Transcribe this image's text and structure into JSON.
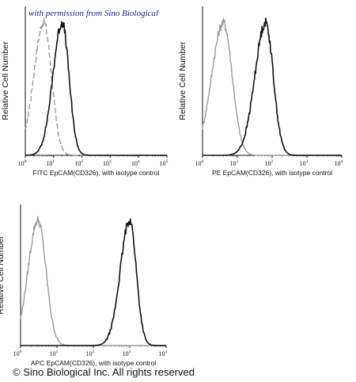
{
  "watermark": "with permission from Sino Biological",
  "copyright": "© Sino Biological Inc. All rights reserved",
  "colors": {
    "isotype": "#9a9a9a",
    "sample": "#111111",
    "axis": "#111111",
    "watermark": "#1a1a8a"
  },
  "chart_data": [
    {
      "type": "line",
      "title": "",
      "xlabel": "FITC  EpCAM(CD326),  with isotype control",
      "ylabel": "Relative Cell Number",
      "x_scale": "log",
      "xlim": [
        1,
        100000
      ],
      "ylim": [
        0,
        1
      ],
      "x_ticks": [
        {
          "base": "10",
          "exp": "0"
        },
        {
          "base": "10",
          "exp": "1"
        },
        {
          "base": "10",
          "exp": "2"
        },
        {
          "base": "10",
          "exp": "3"
        },
        {
          "base": "10",
          "exp": "4"
        },
        {
          "base": "10",
          "exp": "5"
        }
      ],
      "series": [
        {
          "role": "isotype",
          "peak": 4.5,
          "log_width": 0.27,
          "tail": 0.8,
          "style": "dashed"
        },
        {
          "role": "sample",
          "peak": 20,
          "log_width": 0.24,
          "tail": 0.9,
          "style": "solid"
        }
      ]
    },
    {
      "type": "line",
      "title": "",
      "xlabel": "PE  EpCAM(CD326),  with isotype control",
      "ylabel": "Relative Cell Number",
      "x_scale": "log",
      "xlim": [
        1,
        10000
      ],
      "ylim": [
        0,
        1
      ],
      "x_ticks": [
        {
          "base": "10",
          "exp": "0"
        },
        {
          "base": "10",
          "exp": "1"
        },
        {
          "base": "10",
          "exp": "2"
        },
        {
          "base": "10",
          "exp": "3"
        },
        {
          "base": "10",
          "exp": "4"
        }
      ],
      "series": [
        {
          "role": "isotype",
          "peak": 4,
          "log_width": 0.25,
          "tail": 0.9,
          "style": "solid"
        },
        {
          "role": "sample",
          "peak": 65,
          "log_width": 0.22,
          "tail": 1.0,
          "style": "solid"
        }
      ]
    },
    {
      "type": "line",
      "title": "",
      "xlabel": "APC  EpCAM(CD326),  with isotype control",
      "ylabel": "Relative Cell Number",
      "x_scale": "log",
      "xlim": [
        1,
        10000
      ],
      "ylim": [
        0,
        1
      ],
      "x_ticks": [
        {
          "base": "10",
          "exp": "0"
        },
        {
          "base": "10",
          "exp": "1"
        },
        {
          "base": "10",
          "exp": "2"
        },
        {
          "base": "10",
          "exp": "3"
        },
        {
          "base": "10",
          "exp": "4"
        }
      ],
      "series": [
        {
          "role": "isotype",
          "peak": 3,
          "log_width": 0.22,
          "tail": 0.6,
          "style": "solid"
        },
        {
          "role": "sample",
          "peak": 1000,
          "log_width": 0.18,
          "tail": 1.1,
          "style": "solid"
        }
      ]
    }
  ]
}
